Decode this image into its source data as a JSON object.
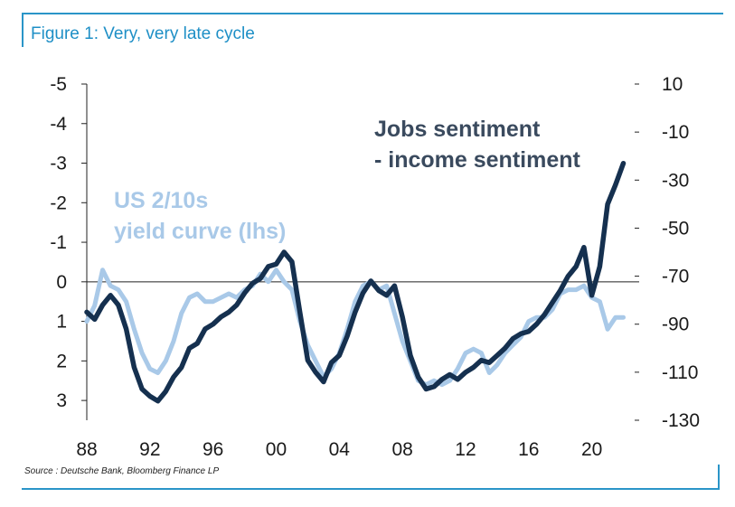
{
  "header": {
    "title": "Figure 1: Very, very late cycle"
  },
  "footer": {
    "source": "Source : Deutsche Bank, Bloomberg Finance LP"
  },
  "colors": {
    "accent": "#2a95c8",
    "light_series": "#a9c9e8",
    "dark_series": "#15304f"
  },
  "chart_data": {
    "type": "line",
    "x_tick_labels": [
      "88",
      "92",
      "96",
      "00",
      "04",
      "08",
      "12",
      "16",
      "20"
    ],
    "x_ticks": [
      1988,
      1992,
      1996,
      2000,
      2004,
      2008,
      2012,
      2016,
      2020
    ],
    "xlim": [
      1988,
      2023
    ],
    "left_axis": {
      "label": "US 2/10s yield curve (lhs)",
      "inverted": true,
      "ylim": [
        -5,
        3.5
      ],
      "ticks": [
        -5,
        -4,
        -3,
        -2,
        -1,
        0,
        1,
        2,
        3
      ],
      "tick_labels": [
        "-5",
        "-4",
        "-3",
        "-2",
        "-1",
        "0",
        "1",
        "2",
        "3"
      ]
    },
    "right_axis": {
      "ylim": [
        -130,
        10
      ],
      "ticks": [
        10,
        -10,
        -30,
        -50,
        -70,
        -90,
        -110,
        -130
      ],
      "tick_labels": [
        "10",
        "-10",
        "-30",
        "-50",
        "-70",
        "-90",
        "-110",
        "-130"
      ]
    },
    "series": [
      {
        "name": "US 2/10s yield curve (lhs)",
        "label_lines": [
          "US 2/10s",
          "yield curve (lhs)"
        ],
        "axis": "left",
        "color": "#a9c9e8",
        "x": [
          1988,
          1988.5,
          1989,
          1989.5,
          1990,
          1990.5,
          1991,
          1991.5,
          1992,
          1992.5,
          1993,
          1993.5,
          1994,
          1994.5,
          1995,
          1995.5,
          1996,
          1996.5,
          1997,
          1997.5,
          1998,
          1998.5,
          1999,
          1999.5,
          2000,
          2000.5,
          2001,
          2001.5,
          2002,
          2002.5,
          2003,
          2003.5,
          2004,
          2004.5,
          2005,
          2005.5,
          2006,
          2006.5,
          2007,
          2007.5,
          2008,
          2008.5,
          2009,
          2009.5,
          2010,
          2010.5,
          2011,
          2011.5,
          2012,
          2012.5,
          2013,
          2013.5,
          2014,
          2014.5,
          2015,
          2015.5,
          2016,
          2016.5,
          2017,
          2017.5,
          2018,
          2018.5,
          2019,
          2019.5,
          2020,
          2020.5,
          2021,
          2021.5,
          2022
        ],
        "y": [
          1.0,
          0.6,
          -0.3,
          0.1,
          0.2,
          0.5,
          1.2,
          1.8,
          2.2,
          2.3,
          2.0,
          1.5,
          0.8,
          0.4,
          0.3,
          0.5,
          0.5,
          0.4,
          0.3,
          0.4,
          0.2,
          0.1,
          -0.2,
          0.0,
          -0.3,
          0.0,
          0.2,
          1.0,
          1.6,
          2.0,
          2.4,
          2.2,
          1.8,
          1.2,
          0.5,
          0.1,
          0.0,
          0.2,
          0.1,
          0.8,
          1.5,
          2.0,
          2.5,
          2.6,
          2.5,
          2.6,
          2.5,
          2.2,
          1.8,
          1.7,
          1.8,
          2.3,
          2.1,
          1.8,
          1.6,
          1.4,
          1.0,
          0.9,
          0.9,
          0.7,
          0.3,
          0.2,
          0.2,
          0.1,
          0.4,
          0.5,
          1.2,
          0.9,
          0.9
        ]
      },
      {
        "name": "Jobs sentiment - income sentiment",
        "label_lines": [
          "Jobs sentiment",
          "- income sentiment"
        ],
        "axis": "right",
        "color": "#15304f",
        "x": [
          1988,
          1988.5,
          1989,
          1989.5,
          1990,
          1990.5,
          1991,
          1991.5,
          1992,
          1992.5,
          1993,
          1993.5,
          1994,
          1994.5,
          1995,
          1995.5,
          1996,
          1996.5,
          1997,
          1997.5,
          1998,
          1998.5,
          1999,
          1999.5,
          2000,
          2000.5,
          2001,
          2001.5,
          2002,
          2002.5,
          2003,
          2003.5,
          2004,
          2004.5,
          2005,
          2005.5,
          2006,
          2006.5,
          2007,
          2007.5,
          2008,
          2008.5,
          2009,
          2009.5,
          2010,
          2010.5,
          2011,
          2011.5,
          2012,
          2012.5,
          2013,
          2013.5,
          2014,
          2014.5,
          2015,
          2015.5,
          2016,
          2016.5,
          2017,
          2017.5,
          2018,
          2018.5,
          2019,
          2019.5,
          2020,
          2020.5,
          2021,
          2021.5,
          2022
        ],
        "y": [
          -85,
          -88,
          -82,
          -78,
          -82,
          -92,
          -108,
          -117,
          -120,
          -122,
          -118,
          -112,
          -108,
          -100,
          -98,
          -92,
          -90,
          -87,
          -85,
          -82,
          -77,
          -73,
          -71,
          -66,
          -65,
          -60,
          -64,
          -85,
          -105,
          -110,
          -114,
          -106,
          -103,
          -95,
          -85,
          -77,
          -72,
          -76,
          -78,
          -74,
          -87,
          -103,
          -112,
          -117,
          -116,
          -113,
          -111,
          -113,
          -110,
          -108,
          -105,
          -106,
          -103,
          -100,
          -96,
          -94,
          -93,
          -90,
          -86,
          -81,
          -76,
          -70,
          -66,
          -58,
          -78,
          -66,
          -40,
          -32,
          -23
        ]
      }
    ]
  }
}
